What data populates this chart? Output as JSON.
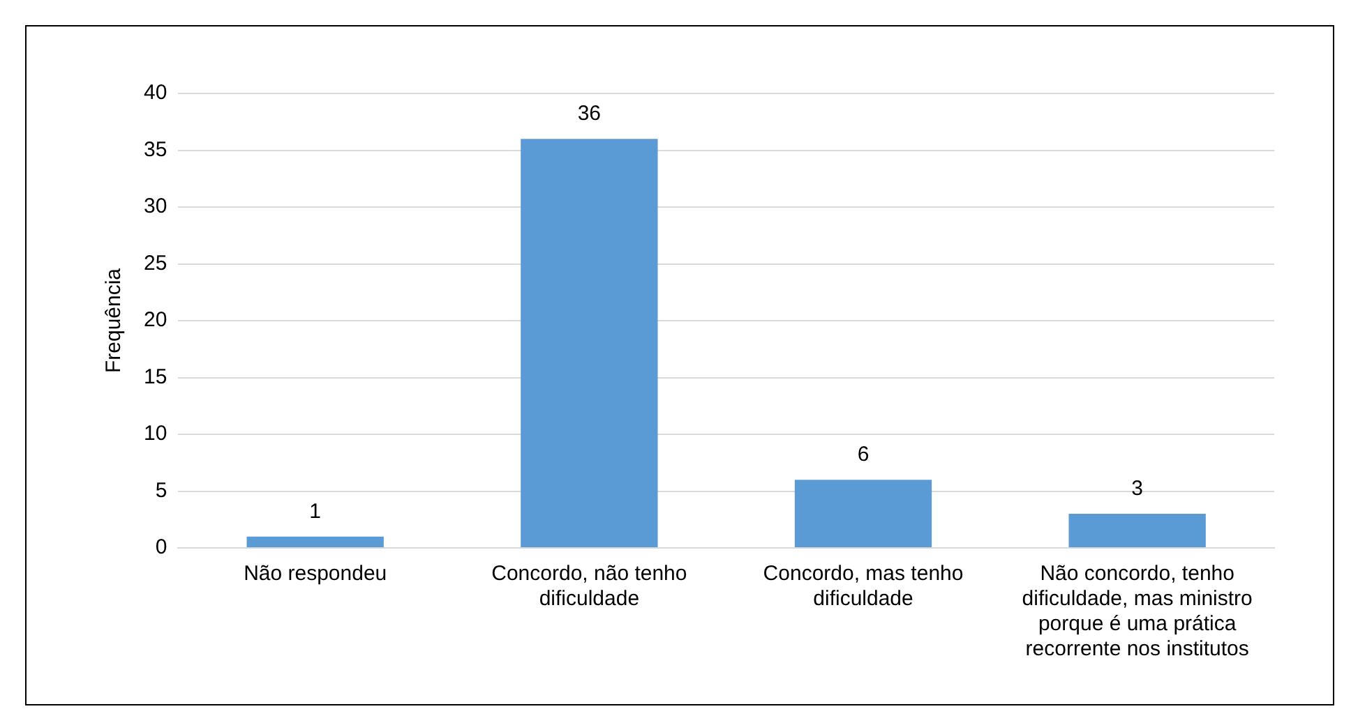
{
  "chart_data": {
    "type": "bar",
    "ylabel": "Frequência",
    "categories": [
      "Não respondeu",
      "Concordo, não tenho dificuldade",
      "Concordo, mas tenho dificuldade",
      "Não concordo, tenho dificuldade, mas ministro porque é uma prática recorrente nos institutos"
    ],
    "values": [
      1,
      36,
      6,
      3
    ],
    "color": "#5b9bd5",
    "ylim": [
      0,
      40
    ],
    "yticks": [
      0,
      5,
      10,
      15,
      20,
      25,
      30,
      35,
      40
    ],
    "grid": "y",
    "data_labels": true,
    "legend": false
  }
}
